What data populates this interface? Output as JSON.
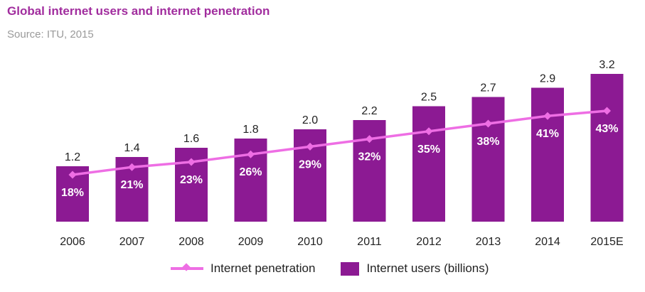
{
  "header": {
    "title": "Global internet users and internet penetration",
    "subtitle": "Source: ITU, 2015"
  },
  "colors": {
    "title": "#a12d9e",
    "bar": "#8c1a93",
    "line": "#ee6ee4",
    "text": "#222222",
    "pct_label": "#ffffff"
  },
  "legend": {
    "line_label": "Internet penetration",
    "bar_label": "Internet users (billions)"
  },
  "chart_data": {
    "type": "bar",
    "categories": [
      "2006",
      "2007",
      "2008",
      "2009",
      "2010",
      "2011",
      "2012",
      "2013",
      "2014",
      "2015E"
    ],
    "series": [
      {
        "name": "Internet users (billions)",
        "type": "bar",
        "values": [
          1.2,
          1.4,
          1.6,
          1.8,
          2.0,
          2.2,
          2.5,
          2.7,
          2.9,
          3.2
        ],
        "labels": [
          "1.2",
          "1.4",
          "1.6",
          "1.8",
          "2.0",
          "2.2",
          "2.5",
          "2.7",
          "2.9",
          "3.2"
        ]
      },
      {
        "name": "Internet penetration",
        "type": "line",
        "values": [
          18,
          21,
          23,
          26,
          29,
          32,
          35,
          38,
          41,
          43
        ],
        "labels": [
          "18%",
          "21%",
          "23%",
          "26%",
          "29%",
          "32%",
          "35%",
          "38%",
          "41%",
          "43%"
        ]
      }
    ],
    "legend_position": "bottom",
    "grid": false
  }
}
